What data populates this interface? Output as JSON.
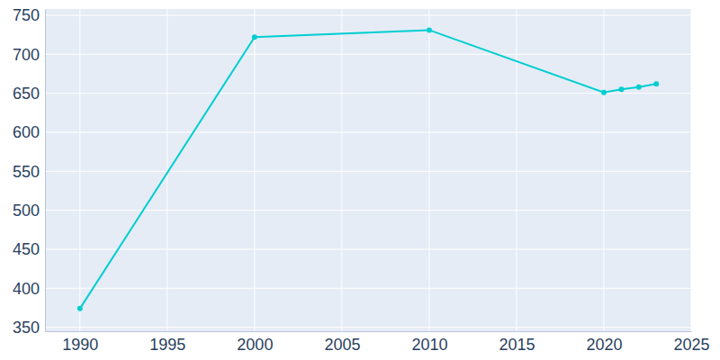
{
  "chart_data": {
    "type": "line",
    "x": [
      1990,
      2000,
      2010,
      2020,
      2021,
      2022,
      2023
    ],
    "series": [
      {
        "color": "#00ced1",
        "values": [
          374,
          722,
          731,
          651,
          655,
          658,
          662
        ],
        "marker": "circle"
      }
    ],
    "xlim": [
      1988,
      2025
    ],
    "xticks": [
      1990,
      1995,
      2000,
      2005,
      2010,
      2015,
      2020,
      2025
    ],
    "ylim": [
      345,
      758
    ],
    "yticks": [
      350,
      400,
      450,
      500,
      550,
      600,
      650,
      700,
      750
    ],
    "grid": true
  }
}
